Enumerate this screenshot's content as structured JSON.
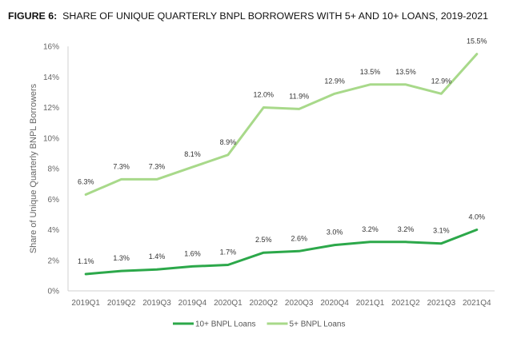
{
  "figure": {
    "label": "FIGURE 6:",
    "title": "SHARE OF UNIQUE QUARTERLY BNPL BORROWERS WITH 5+ AND 10+ LOANS, 2019-2021"
  },
  "chart_data": {
    "type": "line",
    "title": "SHARE OF UNIQUE QUARTERLY BNPL BORROWERS WITH 5+ AND 10+ LOANS, 2019-2021",
    "xlabel": "",
    "ylabel": "Share of Unique Quarterly BNPL Borrowers",
    "ylim": [
      0,
      16
    ],
    "yticks": [
      "0%",
      "2%",
      "4%",
      "6%",
      "8%",
      "10%",
      "12%",
      "14%",
      "16%"
    ],
    "grid": false,
    "legend_position": "bottom",
    "categories": [
      "2019Q1",
      "2019Q2",
      "2019Q3",
      "2019Q4",
      "2020Q1",
      "2020Q2",
      "2020Q3",
      "2020Q4",
      "2021Q1",
      "2021Q2",
      "2021Q3",
      "2021Q4"
    ],
    "series": [
      {
        "name": "10+ BNPL Loans",
        "color": "#2ca84a",
        "values": [
          1.1,
          1.3,
          1.4,
          1.6,
          1.7,
          2.5,
          2.6,
          3.0,
          3.2,
          3.2,
          3.1,
          4.0
        ],
        "labels": [
          "1.1%",
          "1.3%",
          "1.4%",
          "1.6%",
          "1.7%",
          "2.5%",
          "2.6%",
          "3.0%",
          "3.2%",
          "3.2%",
          "3.1%",
          "4.0%"
        ]
      },
      {
        "name": "5+ BNPL Loans",
        "color": "#a8d98a",
        "values": [
          6.3,
          7.3,
          7.3,
          8.1,
          8.9,
          12.0,
          11.9,
          12.9,
          13.5,
          13.5,
          12.9,
          15.5
        ],
        "labels": [
          "6.3%",
          "7.3%",
          "7.3%",
          "8.1%",
          "8.9%",
          "12.0%",
          "11.9%",
          "12.9%",
          "13.5%",
          "13.5%",
          "12.9%",
          "15.5%"
        ]
      }
    ]
  }
}
